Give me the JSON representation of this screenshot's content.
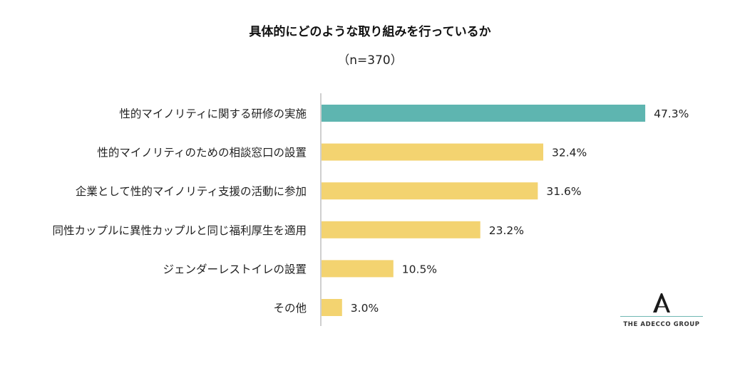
{
  "chart_data": {
    "type": "bar",
    "orientation": "horizontal",
    "title": "具体的にどのような取り組みを行っているか",
    "subtitle": "（n=370）",
    "categories": [
      "性的マイノリティに関する研修の実施",
      "性的マイノリティのための相談窓口の設置",
      "企業として性的マイノリティ支援の活動に参加",
      "同性カップルに異性カップルと同じ福利厚生を適用",
      "ジェンダーレストイレの設置",
      "その他"
    ],
    "values": [
      47.3,
      32.4,
      31.6,
      23.2,
      10.5,
      3.0
    ],
    "value_labels": [
      "47.3%",
      "32.4%",
      "31.6%",
      "23.2%",
      "10.5%",
      "3.0%"
    ],
    "highlight_index": 0,
    "colors": {
      "highlight": "#5eb5b0",
      "default": "#f3d370",
      "axis": "#bfbfbf"
    },
    "unit": "%",
    "xlim": [
      0,
      50
    ],
    "grid": false,
    "legend": "none"
  },
  "logo": {
    "text": "THE ADECCO GROUP",
    "icon": "adecco-a-logo-icon"
  }
}
